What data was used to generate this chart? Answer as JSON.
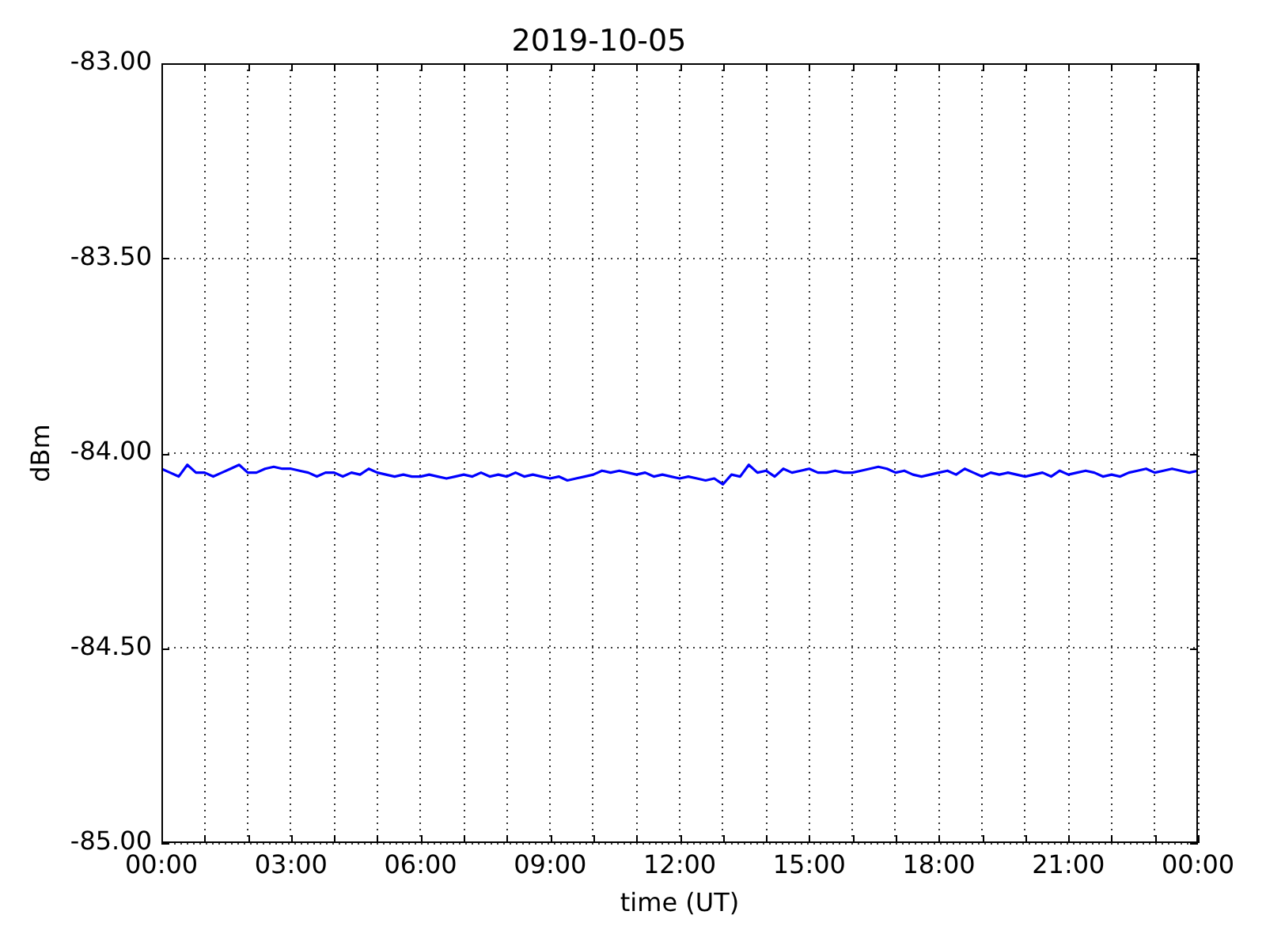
{
  "chart_data": {
    "type": "line",
    "title": "2019-10-05",
    "xlabel": "time (UT)",
    "ylabel": "dBm",
    "x": [
      0,
      0.2,
      0.4,
      0.6,
      0.8,
      1,
      1.2,
      1.4,
      1.6,
      1.8,
      2,
      2.2,
      2.4,
      2.6,
      2.8,
      3,
      3.2,
      3.4,
      3.6,
      3.8,
      4,
      4.2,
      4.4,
      4.6,
      4.8,
      5,
      5.2,
      5.4,
      5.6,
      5.8,
      6,
      6.2,
      6.4,
      6.6,
      6.8,
      7,
      7.2,
      7.4,
      7.6,
      7.8,
      8,
      8.2,
      8.4,
      8.6,
      8.8,
      9,
      9.2,
      9.4,
      9.6,
      9.8,
      10,
      10.2,
      10.4,
      10.6,
      10.8,
      11,
      11.2,
      11.4,
      11.6,
      11.8,
      12,
      12.2,
      12.4,
      12.6,
      12.8,
      13,
      13.2,
      13.4,
      13.6,
      13.8,
      14,
      14.2,
      14.4,
      14.6,
      14.8,
      15,
      15.2,
      15.4,
      15.6,
      15.8,
      16,
      16.2,
      16.4,
      16.6,
      16.8,
      17,
      17.2,
      17.4,
      17.6,
      17.8,
      18,
      18.2,
      18.4,
      18.6,
      18.8,
      19,
      19.2,
      19.4,
      19.6,
      19.8,
      20,
      20.2,
      20.4,
      20.6,
      20.8,
      21,
      21.2,
      21.4,
      21.6,
      21.8,
      22,
      22.2,
      22.4,
      22.6,
      22.8,
      23,
      23.2,
      23.4,
      23.6,
      23.8,
      24
    ],
    "series": [
      {
        "color": "#0000ff",
        "values": [
          -84.04,
          -84.05,
          -84.06,
          -84.03,
          -84.05,
          -84.05,
          -84.06,
          -84.05,
          -84.04,
          -84.03,
          -84.05,
          -84.05,
          -84.04,
          -84.035,
          -84.04,
          -84.04,
          -84.045,
          -84.05,
          -84.06,
          -84.05,
          -84.05,
          -84.06,
          -84.05,
          -84.055,
          -84.04,
          -84.05,
          -84.055,
          -84.06,
          -84.055,
          -84.06,
          -84.06,
          -84.055,
          -84.06,
          -84.065,
          -84.06,
          -84.055,
          -84.06,
          -84.05,
          -84.06,
          -84.055,
          -84.06,
          -84.05,
          -84.06,
          -84.055,
          -84.06,
          -84.065,
          -84.06,
          -84.07,
          -84.065,
          -84.06,
          -84.055,
          -84.045,
          -84.05,
          -84.045,
          -84.05,
          -84.055,
          -84.05,
          -84.06,
          -84.055,
          -84.06,
          -84.065,
          -84.06,
          -84.065,
          -84.07,
          -84.065,
          -84.08,
          -84.055,
          -84.06,
          -84.03,
          -84.05,
          -84.045,
          -84.06,
          -84.04,
          -84.05,
          -84.045,
          -84.04,
          -84.05,
          -84.05,
          -84.045,
          -84.05,
          -84.05,
          -84.045,
          -84.04,
          -84.035,
          -84.04,
          -84.05,
          -84.045,
          -84.055,
          -84.06,
          -84.055,
          -84.05,
          -84.045,
          -84.055,
          -84.04,
          -84.05,
          -84.06,
          -84.05,
          -84.055,
          -84.05,
          -84.055,
          -84.06,
          -84.055,
          -84.05,
          -84.06,
          -84.045,
          -84.055,
          -84.05,
          -84.045,
          -84.05,
          -84.06,
          -84.055,
          -84.06,
          -84.05,
          -84.045,
          -84.04,
          -84.05,
          -84.045,
          -84.04,
          -84.045,
          -84.05,
          -84.045
        ]
      }
    ],
    "xlim": [
      0,
      24
    ],
    "xticks": [
      {
        "value": 0,
        "label": "00:00"
      },
      {
        "value": 1,
        "label": null
      },
      {
        "value": 2,
        "label": null
      },
      {
        "value": 3,
        "label": "03:00"
      },
      {
        "value": 4,
        "label": null
      },
      {
        "value": 5,
        "label": null
      },
      {
        "value": 6,
        "label": "06:00"
      },
      {
        "value": 7,
        "label": null
      },
      {
        "value": 8,
        "label": null
      },
      {
        "value": 9,
        "label": "09:00"
      },
      {
        "value": 10,
        "label": null
      },
      {
        "value": 11,
        "label": null
      },
      {
        "value": 12,
        "label": "12:00"
      },
      {
        "value": 13,
        "label": null
      },
      {
        "value": 14,
        "label": null
      },
      {
        "value": 15,
        "label": "15:00"
      },
      {
        "value": 16,
        "label": null
      },
      {
        "value": 17,
        "label": null
      },
      {
        "value": 18,
        "label": "18:00"
      },
      {
        "value": 19,
        "label": null
      },
      {
        "value": 20,
        "label": null
      },
      {
        "value": 21,
        "label": "21:00"
      },
      {
        "value": 22,
        "label": null
      },
      {
        "value": 23,
        "label": null
      },
      {
        "value": 24,
        "label": "00:00"
      }
    ],
    "ylim": [
      -85,
      -83
    ],
    "yticks": [
      {
        "value": -85,
        "label": "-85.00"
      },
      {
        "value": -84.5,
        "label": "-84.50"
      },
      {
        "value": -84,
        "label": "-84.00"
      },
      {
        "value": -83.5,
        "label": "-83.50"
      },
      {
        "value": -83,
        "label": "-83.00"
      }
    ],
    "grid": true,
    "legend": false,
    "marker": "none",
    "line_style": "solid"
  }
}
